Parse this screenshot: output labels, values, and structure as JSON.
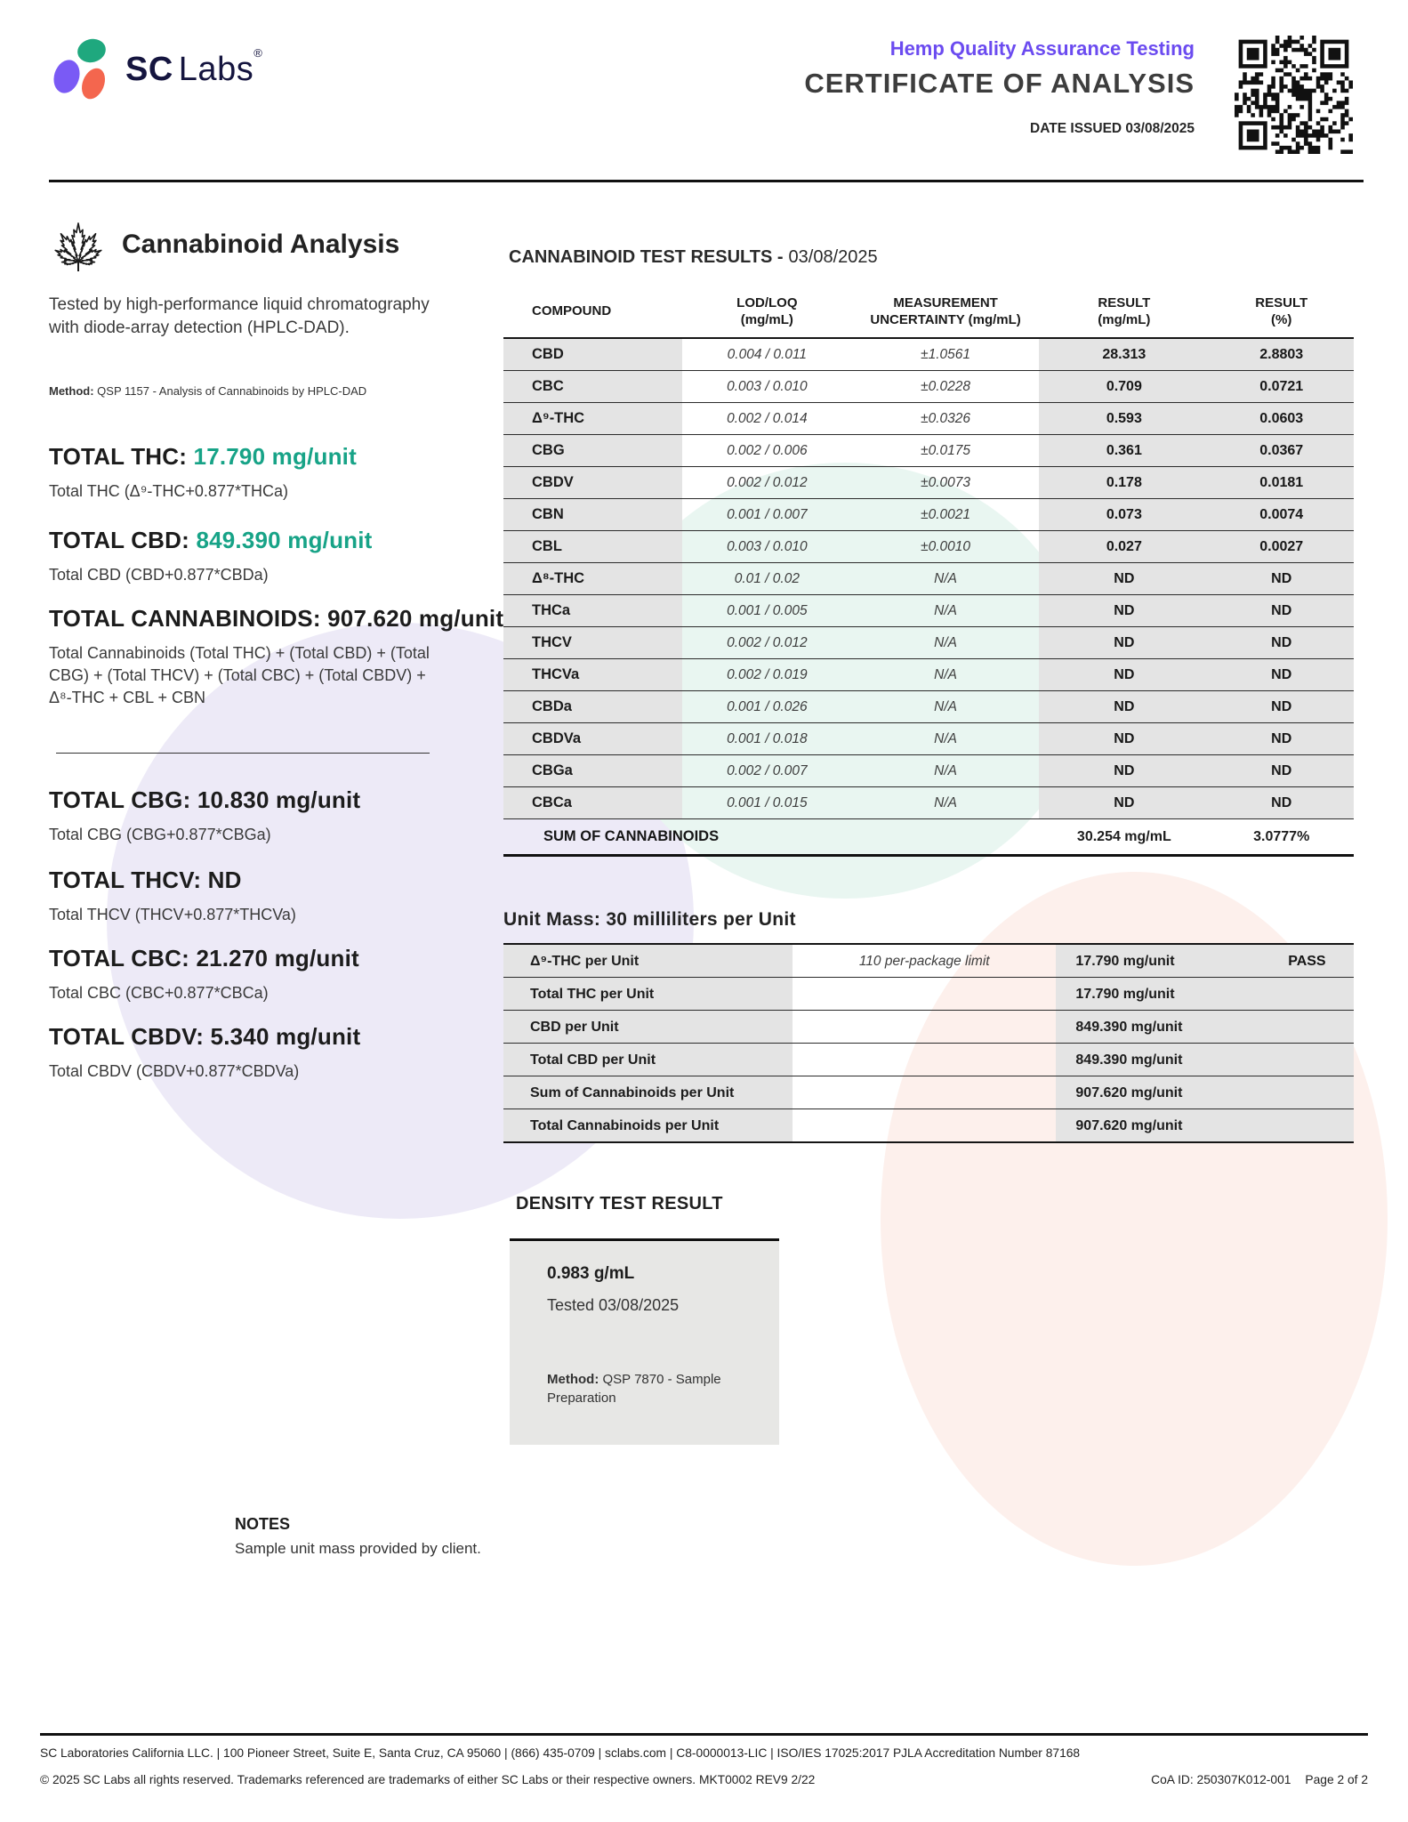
{
  "header": {
    "brand_bold": "SC",
    "brand_light": "Labs",
    "brand_reg": "®",
    "program_title": "Hemp Quality Assurance Testing",
    "doc_title": "CERTIFICATE OF ANALYSIS",
    "date_issued": "DATE ISSUED 03/08/2025"
  },
  "colors": {
    "accent_purple": "#6b4bf0",
    "accent_green": "#17a387",
    "logo_purple": "#7a5af5",
    "logo_green": "#1fa87e",
    "logo_coral": "#f4664e",
    "table_gray": "#e4e4e4"
  },
  "analysis": {
    "section_title": "Cannabinoid Analysis",
    "description": "Tested by high-performance liquid chromatography with diode-array detection (HPLC-DAD).",
    "method_label": "Method:",
    "method_text": "QSP 1157 - Analysis of Cannabinoids by HPLC-DAD",
    "totals": [
      {
        "label": "TOTAL THC:",
        "value": "17.790 mg/unit",
        "formula": "Total THC (Δ⁹-THC+0.877*THCa)"
      },
      {
        "label": "TOTAL CBD:",
        "value": "849.390 mg/unit",
        "formula": "Total CBD (CBD+0.877*CBDa)"
      },
      {
        "label": "TOTAL CANNABINOIDS:",
        "value": "907.620 mg/unit",
        "formula": "Total Cannabinoids (Total THC) + (Total CBD) + (Total CBG) + (Total THCV) + (Total CBC) + (Total CBDV) + Δ⁸-THC + CBL + CBN"
      },
      {
        "label": "TOTAL CBG:",
        "value": "10.830 mg/unit",
        "formula": "Total CBG (CBG+0.877*CBGa)"
      },
      {
        "label": "TOTAL THCV:",
        "value": "ND",
        "formula": "Total THCV (THCV+0.877*THCVa)"
      },
      {
        "label": "TOTAL CBC:",
        "value": "21.270 mg/unit",
        "formula": "Total CBC (CBC+0.877*CBCa)"
      },
      {
        "label": "TOTAL CBDV:",
        "value": "5.340 mg/unit",
        "formula": "Total CBDV (CBDV+0.877*CBDVa)"
      }
    ]
  },
  "results_table": {
    "title_label": "CANNABINOID TEST RESULTS -",
    "title_date": "03/08/2025",
    "headers": {
      "compound": "COMPOUND",
      "lod_l1": "LOD/LOQ",
      "lod_l2": "(mg/mL)",
      "unc_l1": "MEASUREMENT",
      "unc_l2": "UNCERTAINTY (mg/mL)",
      "res1_l1": "RESULT",
      "res1_l2": "(mg/mL)",
      "res2_l1": "RESULT",
      "res2_l2": "(%)"
    },
    "rows": [
      {
        "compound": "CBD",
        "lod_loq": "0.004 / 0.011",
        "uncertainty": "±1.0561",
        "result_mgml": "28.313",
        "result_pct": "2.8803"
      },
      {
        "compound": "CBC",
        "lod_loq": "0.003 / 0.010",
        "uncertainty": "±0.0228",
        "result_mgml": "0.709",
        "result_pct": "0.0721"
      },
      {
        "compound": "Δ⁹-THC",
        "lod_loq": "0.002 / 0.014",
        "uncertainty": "±0.0326",
        "result_mgml": "0.593",
        "result_pct": "0.0603"
      },
      {
        "compound": "CBG",
        "lod_loq": "0.002 / 0.006",
        "uncertainty": "±0.0175",
        "result_mgml": "0.361",
        "result_pct": "0.0367"
      },
      {
        "compound": "CBDV",
        "lod_loq": "0.002 / 0.012",
        "uncertainty": "±0.0073",
        "result_mgml": "0.178",
        "result_pct": "0.0181"
      },
      {
        "compound": "CBN",
        "lod_loq": "0.001 / 0.007",
        "uncertainty": "±0.0021",
        "result_mgml": "0.073",
        "result_pct": "0.0074"
      },
      {
        "compound": "CBL",
        "lod_loq": "0.003 / 0.010",
        "uncertainty": "±0.0010",
        "result_mgml": "0.027",
        "result_pct": "0.0027"
      },
      {
        "compound": "Δ⁸-THC",
        "lod_loq": "0.01 / 0.02",
        "uncertainty": "N/A",
        "result_mgml": "ND",
        "result_pct": "ND"
      },
      {
        "compound": "THCa",
        "lod_loq": "0.001 / 0.005",
        "uncertainty": "N/A",
        "result_mgml": "ND",
        "result_pct": "ND"
      },
      {
        "compound": "THCV",
        "lod_loq": "0.002 / 0.012",
        "uncertainty": "N/A",
        "result_mgml": "ND",
        "result_pct": "ND"
      },
      {
        "compound": "THCVa",
        "lod_loq": "0.002 / 0.019",
        "uncertainty": "N/A",
        "result_mgml": "ND",
        "result_pct": "ND"
      },
      {
        "compound": "CBDa",
        "lod_loq": "0.001 / 0.026",
        "uncertainty": "N/A",
        "result_mgml": "ND",
        "result_pct": "ND"
      },
      {
        "compound": "CBDVa",
        "lod_loq": "0.001 / 0.018",
        "uncertainty": "N/A",
        "result_mgml": "ND",
        "result_pct": "ND"
      },
      {
        "compound": "CBGa",
        "lod_loq": "0.002 / 0.007",
        "uncertainty": "N/A",
        "result_mgml": "ND",
        "result_pct": "ND"
      },
      {
        "compound": "CBCa",
        "lod_loq": "0.001 / 0.015",
        "uncertainty": "N/A",
        "result_mgml": "ND",
        "result_pct": "ND"
      }
    ],
    "sum_label": "SUM OF CANNABINOIDS",
    "sum_result_mgml": "30.254 mg/mL",
    "sum_result_pct": "3.0777%"
  },
  "unit_mass": {
    "heading": "Unit Mass: 30 milliliters per Unit",
    "rows": [
      {
        "label": "Δ⁹-THC per Unit",
        "limit": "110 per-package limit",
        "value": "17.790 mg/unit",
        "status": "PASS"
      },
      {
        "label": "Total THC per Unit",
        "limit": "",
        "value": "17.790 mg/unit",
        "status": ""
      },
      {
        "label": "CBD per Unit",
        "limit": "",
        "value": "849.390 mg/unit",
        "status": ""
      },
      {
        "label": "Total CBD per Unit",
        "limit": "",
        "value": "849.390 mg/unit",
        "status": ""
      },
      {
        "label": "Sum of Cannabinoids per Unit",
        "limit": "",
        "value": "907.620 mg/unit",
        "status": ""
      },
      {
        "label": "Total Cannabinoids per Unit",
        "limit": "",
        "value": "907.620 mg/unit",
        "status": ""
      }
    ]
  },
  "density": {
    "heading": "DENSITY TEST RESULT",
    "value": "0.983 g/mL",
    "tested": "Tested 03/08/2025",
    "method_label": "Method:",
    "method_text": "QSP 7870 - Sample Preparation"
  },
  "notes": {
    "heading": "NOTES",
    "text": "Sample unit mass provided by client."
  },
  "footer": {
    "line1": "SC Laboratories California LLC. | 100 Pioneer Street, Suite E, Santa Cruz, CA 95060 | (866) 435-0709 | sclabs.com | C8-0000013-LIC | ISO/IES 17025:2017 PJLA Accreditation Number 87168",
    "line2": "© 2025 SC Labs all rights reserved. Trademarks referenced are trademarks of either SC Labs or their respective owners. MKT0002 REV9 2/22",
    "coa_id": "CoA ID: 250307K012-001",
    "page": "Page 2 of 2"
  }
}
